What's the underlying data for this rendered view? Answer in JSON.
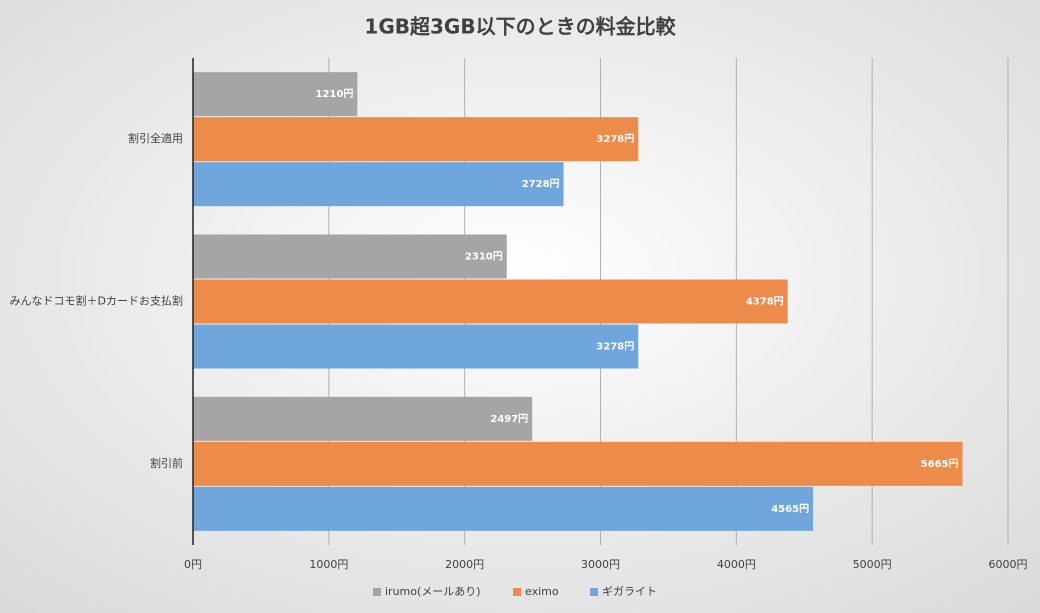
{
  "chart_data": {
    "type": "bar",
    "orientation": "horizontal",
    "title": "1GB超3GB以下のときの料金比較",
    "categories": [
      "割引全適用",
      "みんなドコモ割＋Dカードお支払割",
      "割引前"
    ],
    "series": [
      {
        "name": "irumo(メールあり)",
        "color": "#a5a5a5",
        "values": [
          1210,
          2310,
          2497
        ],
        "value_labels": [
          "1210円",
          "2310円",
          "2497円"
        ]
      },
      {
        "name": "eximo",
        "color": "#ed8b4a",
        "values": [
          3278,
          4378,
          5665
        ],
        "value_labels": [
          "3278円",
          "4378円",
          "5665円"
        ]
      },
      {
        "name": "ギガライト",
        "color": "#6fa6db",
        "values": [
          2728,
          3278,
          4565
        ],
        "value_labels": [
          "2728円",
          "3278円",
          "4565円"
        ]
      }
    ],
    "xlim": [
      0,
      6000
    ],
    "xticks": [
      {
        "value": 0,
        "label": "0円"
      },
      {
        "value": 1000,
        "label": "1000円"
      },
      {
        "value": 2000,
        "label": "2000円"
      },
      {
        "value": 3000,
        "label": "3000円"
      },
      {
        "value": 4000,
        "label": "4000円"
      },
      {
        "value": 5000,
        "label": "5000円"
      },
      {
        "value": 6000,
        "label": "6000円"
      }
    ],
    "grid": true,
    "legend": "bottom"
  }
}
